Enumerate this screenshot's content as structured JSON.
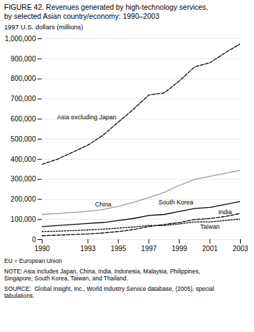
{
  "chart_data": {
    "type": "line",
    "title": "FIGURE 42. Revenues generated by high-technology services,",
    "subtitle": "by selected Asian country/economy: 1990–2003",
    "ylabel": "1997 U.S. dollars (millions)",
    "footnotes": [
      "EU = European Union",
      "NOTE: Asia includes Japan, China, India, Indonesia, Malaysia, Philippines,",
      "Singapore, South Korea, Taiwan, and Thailand.",
      "SOURCE:  Global Insight, Inc., World Industry Service database, (2005), special",
      "tabulations."
    ],
    "x": [
      1990,
      1991,
      1992,
      1993,
      1994,
      1995,
      1996,
      1997,
      1998,
      1999,
      2000,
      2001,
      2002,
      2003
    ],
    "series": [
      {
        "name": "Asia excluding Japan",
        "color": "#000000",
        "line_style": "dashed",
        "values": [
          375000,
          400000,
          435000,
          470000,
          520000,
          585000,
          650000,
          720000,
          730000,
          790000,
          860000,
          880000,
          930000,
          975000
        ]
      },
      {
        "name": "China",
        "color": "#999999",
        "line_style": "solid",
        "values": [
          125000,
          130000,
          135000,
          140000,
          150000,
          165000,
          185000,
          210000,
          235000,
          270000,
          300000,
          315000,
          330000,
          345000
        ]
      },
      {
        "name": "South Korea",
        "color": "#000000",
        "line_style": "solid",
        "values": [
          65000,
          70000,
          75000,
          80000,
          85000,
          95000,
          105000,
          120000,
          125000,
          140000,
          155000,
          160000,
          175000,
          190000
        ]
      },
      {
        "name": "India",
        "color": "#000000",
        "line_style": "dashed",
        "values": [
          20000,
          22000,
          25000,
          28000,
          33000,
          40000,
          50000,
          65000,
          75000,
          85000,
          100000,
          105000,
          115000,
          130000
        ]
      },
      {
        "name": "Taiwan",
        "color": "#000000",
        "line_style": "dotted",
        "values": [
          40000,
          42000,
          45000,
          48000,
          52000,
          57000,
          63000,
          70000,
          70000,
          78000,
          88000,
          88000,
          95000,
          103000
        ]
      }
    ],
    "xlim": [
      1990,
      2003
    ],
    "ylim": [
      0,
      1000000
    ],
    "xticks": [
      1990,
      1993,
      1995,
      1997,
      1999,
      2001,
      2003
    ],
    "yticks": [
      0,
      {
        "value": 100000,
        "label": "100,000"
      },
      {
        "value": 200000,
        "label": "200,000"
      },
      {
        "value": 300000,
        "label": "300,000"
      },
      {
        "value": 400000,
        "label": "400,000"
      },
      {
        "value": 500000,
        "label": "500,000"
      },
      {
        "value": 600000,
        "label": "600,000"
      },
      {
        "value": 700000,
        "label": "700,000"
      },
      {
        "value": 800000,
        "label": "800,000"
      },
      {
        "value": 900000,
        "label": "900,000"
      },
      {
        "value": 1000000,
        "label": "1,000,000"
      }
    ],
    "grid": true
  }
}
